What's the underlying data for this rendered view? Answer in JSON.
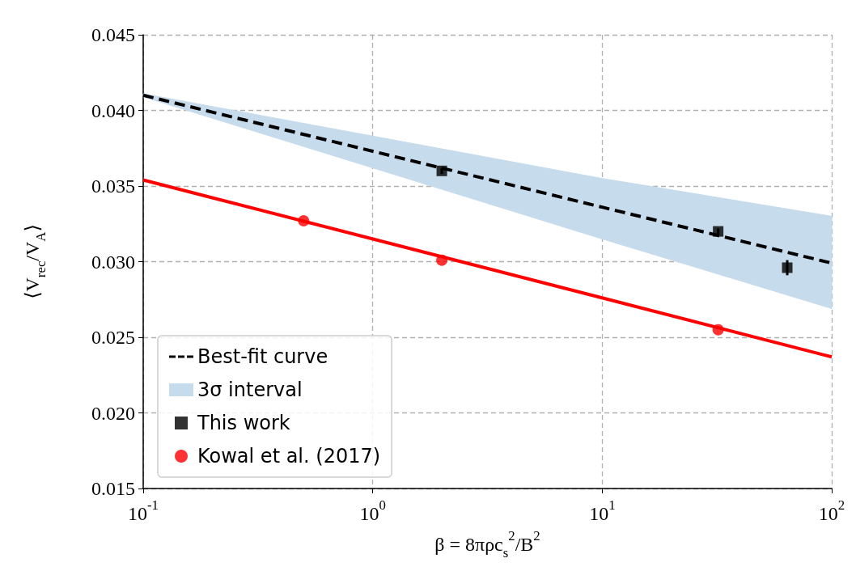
{
  "chart_data": {
    "type": "line",
    "xlabel": "β = 8πρc$_{s}$$^{2}$/B$^{2}$",
    "ylabel": "⟨V$_{rec}$/V$_{A}$⟩",
    "log": "x",
    "xlim": [
      0.1,
      100
    ],
    "xticks": [
      {
        "value": 0.1,
        "label": "10$^{-1}$"
      },
      {
        "value": 1,
        "label": "10$^{0}$"
      },
      {
        "value": 10,
        "label": "10$^{1}$"
      },
      {
        "value": 100,
        "label": "10$^{2}$"
      }
    ],
    "ylim": [
      0.015,
      0.045
    ],
    "yticks": [
      {
        "value": 0.015,
        "label": "0.015"
      },
      {
        "value": 0.02,
        "label": "0.020"
      },
      {
        "value": 0.025,
        "label": "0.025"
      },
      {
        "value": 0.03,
        "label": "0.030"
      },
      {
        "value": 0.035,
        "label": "0.035"
      },
      {
        "value": 0.04,
        "label": "0.040"
      },
      {
        "value": 0.045,
        "label": "0.045"
      }
    ],
    "grid": true,
    "legend": "bottom left",
    "series": [
      {
        "name": "Best-fit curve",
        "line_style": "dashed",
        "marker": "none",
        "color": "#000000",
        "x": [
          0.1,
          1,
          10,
          100
        ],
        "values": [
          0.041,
          0.0373,
          0.0336,
          0.0299
        ],
        "lower": [
          0.0409,
          0.0362,
          0.0315,
          0.0269
        ],
        "upper": [
          0.0411,
          0.0383,
          0.0355,
          0.033
        ]
      },
      {
        "name": "3σ interval",
        "type": "area",
        "color": "#c6dbec"
      },
      {
        "name": "This work",
        "type": "scatter",
        "marker": "square",
        "color": "#000000",
        "x": [
          2,
          32,
          64
        ],
        "values": [
          0.036,
          0.032,
          0.0296
        ],
        "errors": [
          0.0002,
          0.0002,
          0.0005
        ]
      },
      {
        "name": "Kowal et al. (2017)",
        "type": "scatter",
        "marker": "circle",
        "color": "#ff0000",
        "x": [
          0.5,
          2,
          32
        ],
        "values": [
          0.0327,
          0.0301,
          0.0255
        ]
      },
      {
        "line_style": "solid",
        "marker": "none",
        "color": "#ff0000",
        "x": [
          0.1,
          100
        ],
        "values": [
          0.0354,
          0.0237
        ]
      }
    ]
  }
}
